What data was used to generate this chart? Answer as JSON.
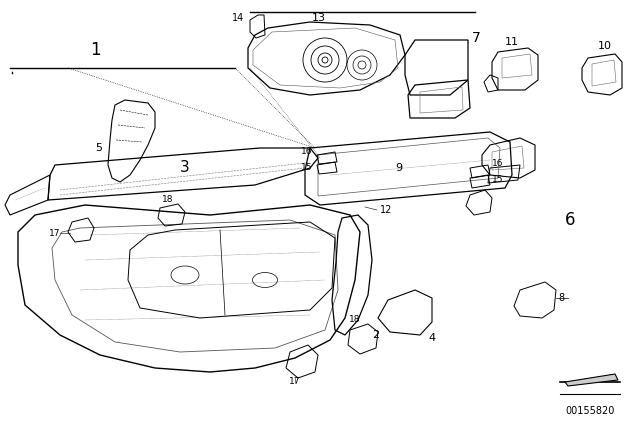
{
  "bg_color": "#ffffff",
  "line_color": "#000000",
  "text_color": "#000000",
  "diagram_number": "00155820",
  "figsize": [
    6.4,
    4.48
  ],
  "dpi": 100
}
